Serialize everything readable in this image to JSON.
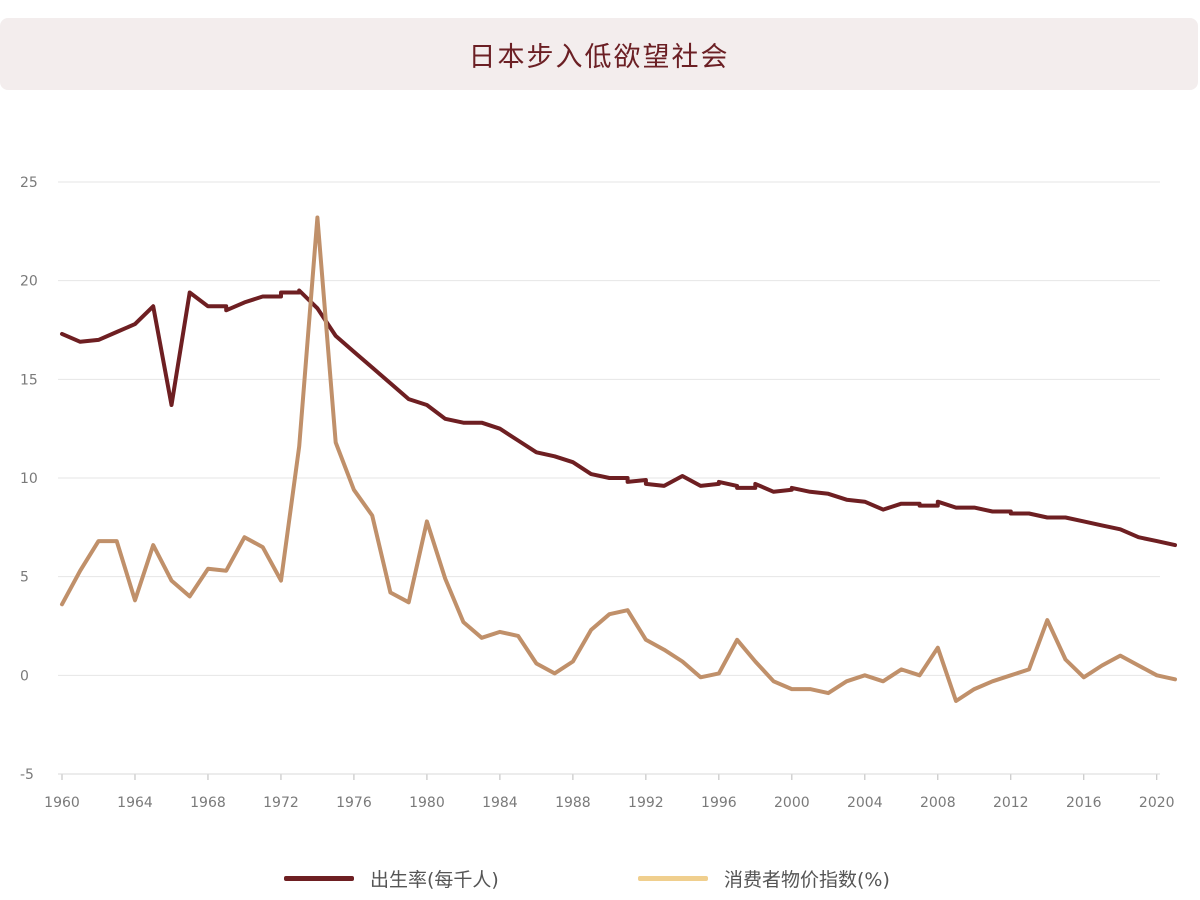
{
  "title": "日本步入低欲望社会",
  "colors": {
    "birth_rate": "#6e1f22",
    "cpi": "#c0906a",
    "cpi_legend": "#f0cf8e",
    "grid": "#e6e6e6",
    "title_bg": "#f3eded",
    "title_text": "#6b1f24"
  },
  "chart_data": {
    "type": "line",
    "xlim": [
      1960,
      2021
    ],
    "ylim": [
      -5,
      25
    ],
    "y_ticks": [
      25,
      20,
      15,
      10,
      5,
      0,
      -5
    ],
    "x_ticks": [
      1960,
      1964,
      1968,
      1972,
      1976,
      1980,
      1984,
      1988,
      1992,
      1996,
      2000,
      2004,
      2008,
      2012,
      2016,
      2020
    ],
    "grid": true,
    "legend_position": "bottom",
    "series": [
      {
        "name": "出生率(每千人)",
        "color": "#6e1f22",
        "x": [
          1960,
          1961,
          1962,
          1963,
          1964,
          1965,
          1966,
          1967,
          1968,
          1969,
          1969,
          1970,
          1971,
          1972,
          1972,
          1973,
          1973,
          1974,
          1975,
          1976,
          1977,
          1978,
          1979,
          1980,
          1981,
          1982,
          1983,
          1984,
          1985,
          1986,
          1987,
          1988,
          1989,
          1990,
          1991,
          1991,
          1992,
          1992,
          1993,
          1994,
          1995,
          1996,
          1996,
          1997,
          1997,
          1998,
          1998,
          1999,
          2000,
          2000,
          2001,
          2002,
          2003,
          2004,
          2005,
          2006,
          2007,
          2007,
          2008,
          2008,
          2009,
          2010,
          2011,
          2012,
          2012,
          2013,
          2014,
          2015,
          2016,
          2017,
          2018,
          2019,
          2020,
          2021
        ],
        "values": [
          17.3,
          16.9,
          17.0,
          17.4,
          17.8,
          18.7,
          13.7,
          19.4,
          18.7,
          18.7,
          18.5,
          18.9,
          19.2,
          19.2,
          19.4,
          19.4,
          19.5,
          18.6,
          17.2,
          16.4,
          15.6,
          14.8,
          14.0,
          13.7,
          13.0,
          12.8,
          12.8,
          12.5,
          11.9,
          11.3,
          11.1,
          10.8,
          10.2,
          10.0,
          10.0,
          9.8,
          9.9,
          9.7,
          9.6,
          10.1,
          9.6,
          9.7,
          9.8,
          9.6,
          9.5,
          9.5,
          9.7,
          9.3,
          9.4,
          9.5,
          9.3,
          9.2,
          8.9,
          8.8,
          8.4,
          8.7,
          8.7,
          8.6,
          8.6,
          8.8,
          8.5,
          8.5,
          8.3,
          8.3,
          8.2,
          8.2,
          8.0,
          8.0,
          7.8,
          7.6,
          7.4,
          7.0,
          6.8,
          6.6
        ]
      },
      {
        "name": "消费者物价指数(%)",
        "color": "#c0906a",
        "x": [
          1960,
          1961,
          1962,
          1963,
          1964,
          1965,
          1966,
          1967,
          1968,
          1969,
          1970,
          1971,
          1972,
          1973,
          1974,
          1975,
          1976,
          1977,
          1978,
          1979,
          1980,
          1981,
          1982,
          1983,
          1984,
          1985,
          1986,
          1987,
          1988,
          1989,
          1990,
          1991,
          1992,
          1993,
          1994,
          1995,
          1996,
          1997,
          1998,
          1999,
          2000,
          2001,
          2002,
          2003,
          2004,
          2005,
          2006,
          2007,
          2008,
          2009,
          2010,
          2011,
          2012,
          2013,
          2014,
          2015,
          2016,
          2017,
          2018,
          2019,
          2020,
          2021
        ],
        "values": [
          3.6,
          5.3,
          6.8,
          6.8,
          3.8,
          6.6,
          4.8,
          4.0,
          5.4,
          5.3,
          7.0,
          6.5,
          4.8,
          11.6,
          23.2,
          11.8,
          9.4,
          8.1,
          4.2,
          3.7,
          7.8,
          4.9,
          2.7,
          1.9,
          2.2,
          2.0,
          0.6,
          0.1,
          0.7,
          2.3,
          3.1,
          3.3,
          1.8,
          1.3,
          0.7,
          -0.1,
          0.1,
          1.8,
          0.7,
          -0.3,
          -0.7,
          -0.7,
          -0.9,
          -0.3,
          0.0,
          -0.3,
          0.3,
          0.0,
          1.4,
          -1.3,
          -0.7,
          -0.3,
          0.0,
          0.3,
          2.8,
          0.8,
          -0.1,
          0.5,
          1.0,
          0.5,
          0.0,
          -0.2
        ]
      }
    ]
  },
  "legend": {
    "items": [
      {
        "label": "出生率(每千人)"
      },
      {
        "label": "消费者物价指数(%)"
      }
    ]
  }
}
